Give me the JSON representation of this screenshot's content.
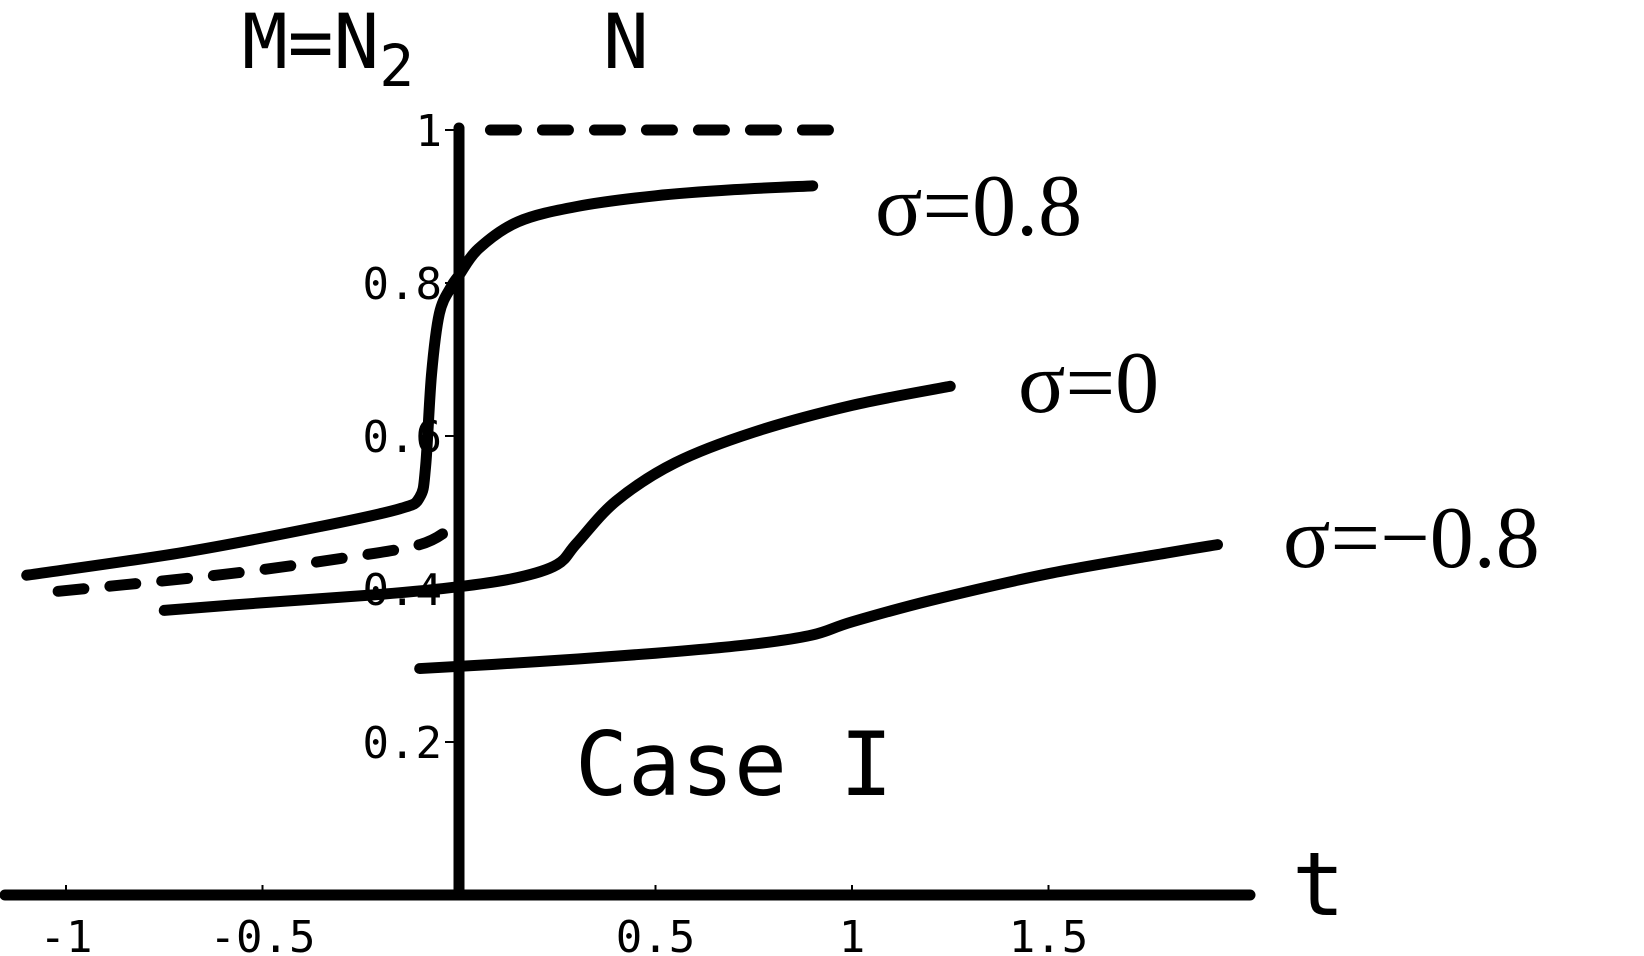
{
  "chart_data": {
    "type": "line",
    "title": "",
    "xlabel": "t",
    "ylabel_main": "M=N",
    "ylabel_sub": "2",
    "ylabel_extra": "N",
    "xlim": [
      -1.17,
      2.0
    ],
    "ylim": [
      0,
      1.0
    ],
    "x_ticks": [
      {
        "value": -1,
        "label": "-1"
      },
      {
        "value": -0.5,
        "label": "-0.5"
      },
      {
        "value": 0.5,
        "label": "0.5"
      },
      {
        "value": 1,
        "label": "1"
      },
      {
        "value": 1.5,
        "label": "1.5"
      }
    ],
    "y_ticks": [
      {
        "value": 0.2,
        "label": "0.2"
      },
      {
        "value": 0.4,
        "label": "0.4"
      },
      {
        "value": 0.6,
        "label": "0.6"
      },
      {
        "value": 0.8,
        "label": "0.8"
      },
      {
        "value": 1.0,
        "label": "1"
      }
    ],
    "annotation": "Case I",
    "series": [
      {
        "label": "σ=0.8",
        "style": "solid",
        "points": [
          [
            -1.1,
            0.418
          ],
          [
            -0.7,
            0.448
          ],
          [
            -0.35,
            0.482
          ],
          [
            -0.15,
            0.505
          ],
          [
            -0.1,
            0.52
          ],
          [
            -0.085,
            0.56
          ],
          [
            -0.07,
            0.68
          ],
          [
            -0.05,
            0.76
          ],
          [
            -0.02,
            0.795
          ],
          [
            0.0,
            0.81
          ],
          [
            0.05,
            0.845
          ],
          [
            0.15,
            0.88
          ],
          [
            0.3,
            0.9
          ],
          [
            0.5,
            0.914
          ],
          [
            0.7,
            0.922
          ],
          [
            0.9,
            0.927
          ]
        ]
      },
      {
        "label": "σ=0",
        "style": "solid",
        "points": [
          [
            -0.75,
            0.372
          ],
          [
            -0.5,
            0.382
          ],
          [
            -0.2,
            0.393
          ],
          [
            0.0,
            0.403
          ],
          [
            0.15,
            0.415
          ],
          [
            0.25,
            0.432
          ],
          [
            0.3,
            0.46
          ],
          [
            0.4,
            0.515
          ],
          [
            0.55,
            0.565
          ],
          [
            0.75,
            0.605
          ],
          [
            1.0,
            0.64
          ],
          [
            1.25,
            0.665
          ]
        ]
      },
      {
        "label": "σ=−0.8",
        "style": "solid",
        "points": [
          [
            -0.1,
            0.296
          ],
          [
            0.2,
            0.305
          ],
          [
            0.5,
            0.316
          ],
          [
            0.75,
            0.328
          ],
          [
            0.9,
            0.34
          ],
          [
            1.0,
            0.357
          ],
          [
            1.2,
            0.385
          ],
          [
            1.5,
            0.42
          ],
          [
            1.8,
            0.447
          ],
          [
            1.93,
            0.458
          ]
        ]
      },
      {
        "label": "",
        "style": "dashed",
        "points": [
          [
            -1.02,
            0.397
          ],
          [
            -0.6,
            0.419
          ],
          [
            -0.3,
            0.44
          ],
          [
            -0.1,
            0.458
          ],
          [
            -0.02,
            0.48
          ]
        ]
      },
      {
        "label": "",
        "style": "dashed",
        "points": [
          [
            0.08,
            1.0
          ],
          [
            0.95,
            1.0
          ]
        ]
      }
    ],
    "grid": false,
    "legend": "none"
  }
}
